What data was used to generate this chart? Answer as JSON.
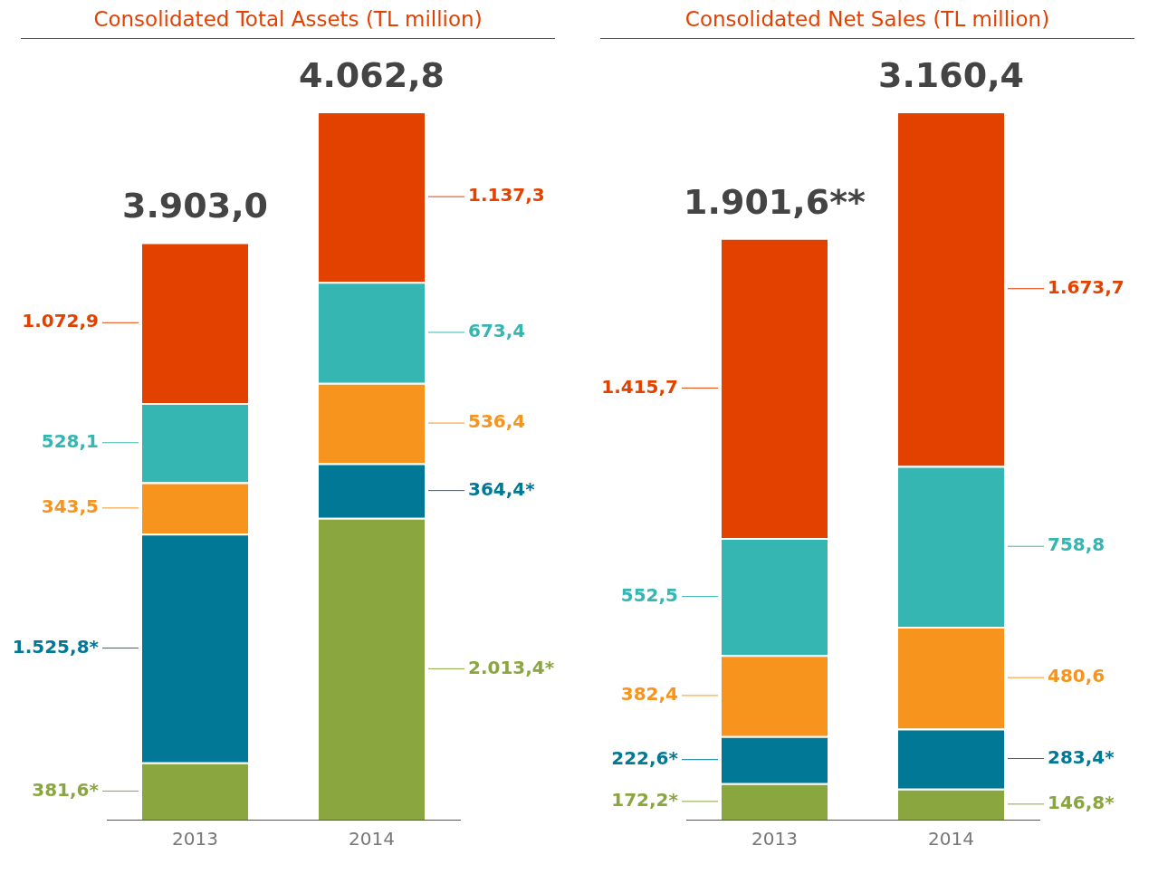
{
  "chart_data": [
    {
      "type": "bar",
      "title": "Consolidated Total Assets (TL million)",
      "categories": [
        "2013",
        "2014"
      ],
      "stacked": true,
      "annotations": [
        "3.903,0",
        "4.062,8"
      ],
      "series": [
        {
          "color": "#8aa63f",
          "values": [
            381.6,
            2013.4
          ],
          "value_labels": [
            "381,6*",
            "2.013,4*"
          ]
        },
        {
          "color": "#007896",
          "values": [
            1525.8,
            364.4
          ],
          "value_labels": [
            "1.525,8*",
            "364,4*"
          ]
        },
        {
          "color": "#f7941d",
          "values": [
            343.5,
            536.4
          ],
          "value_labels": [
            "343,5",
            "536,4"
          ]
        },
        {
          "color": "#36b6b2",
          "values": [
            528.1,
            673.4
          ],
          "value_labels": [
            "528,1",
            "673,4"
          ]
        },
        {
          "color": "#e34100",
          "values": [
            1072.9,
            1137.3
          ],
          "value_labels": [
            "1.072,9",
            "1.137,3"
          ]
        }
      ]
    },
    {
      "type": "bar",
      "title": "Consolidated Net Sales (TL million)",
      "categories": [
        "2013",
        "2014"
      ],
      "stacked": true,
      "annotations": [
        "1.901,6**",
        "3.160,4"
      ],
      "series": [
        {
          "color": "#8aa63f",
          "values": [
            172.2,
            146.8
          ],
          "value_labels": [
            "172,2*",
            "146,8*"
          ]
        },
        {
          "color": "#007896",
          "values": [
            222.6,
            283.4
          ],
          "value_labels": [
            "222,6*",
            "283,4*"
          ]
        },
        {
          "color": "#f7941d",
          "values": [
            382.4,
            480.6
          ],
          "value_labels": [
            "382,4",
            "480,6"
          ]
        },
        {
          "color": "#36b6b2",
          "values": [
            552.5,
            758.8
          ],
          "value_labels": [
            "552,5",
            "758,8"
          ]
        },
        {
          "color": "#e34100",
          "values": [
            1415.7,
            1673.7
          ],
          "value_labels": [
            "1.415,7",
            "1.673,7"
          ]
        }
      ]
    }
  ]
}
